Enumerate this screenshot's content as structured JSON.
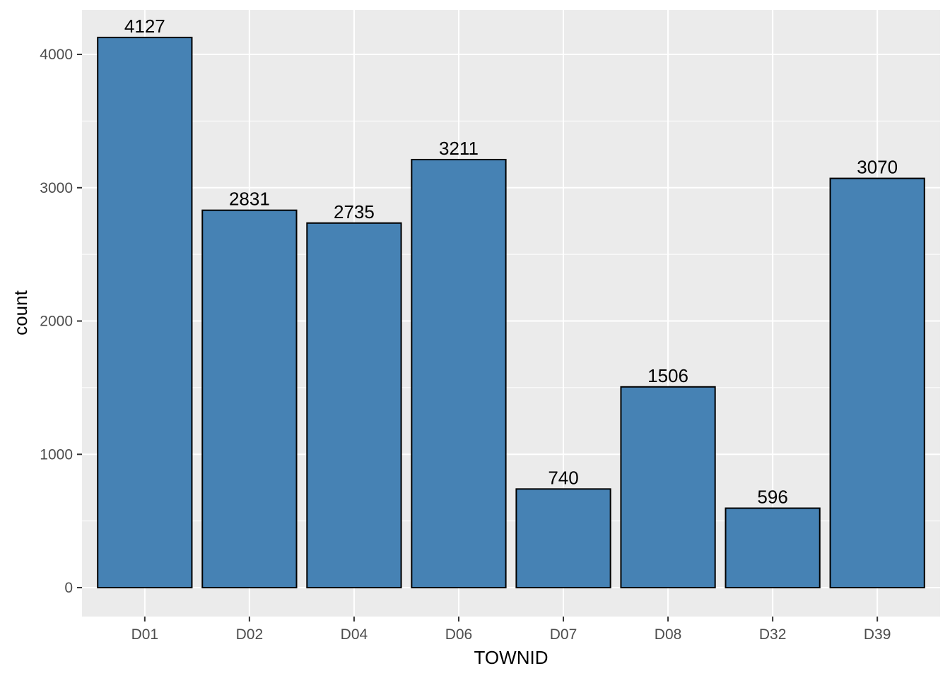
{
  "chart_data": {
    "type": "bar",
    "categories": [
      "D01",
      "D02",
      "D04",
      "D06",
      "D07",
      "D08",
      "D32",
      "D39"
    ],
    "values": [
      4127,
      2831,
      2735,
      3211,
      740,
      1506,
      596,
      3070
    ],
    "data_labels": [
      "4127",
      "2831",
      "2735",
      "3211",
      "740",
      "1506",
      "596",
      "3070"
    ],
    "xlabel": "TOWNID",
    "ylabel": "count",
    "yticks": [
      0,
      1000,
      2000,
      3000,
      4000
    ],
    "ytick_labels": [
      "0",
      "1000",
      "2000",
      "3000",
      "4000"
    ],
    "ylim": [
      -217,
      4334
    ],
    "grid": true,
    "colors": {
      "bar_fill": "#4682b4",
      "bar_stroke": "#000000",
      "panel_bg": "#ebebeb",
      "grid": "#ffffff"
    }
  }
}
